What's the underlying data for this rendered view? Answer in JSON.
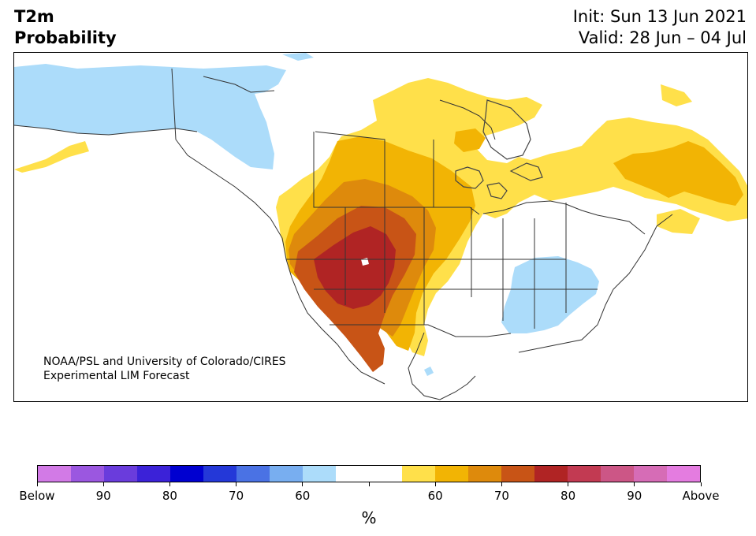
{
  "title_left": [
    "T2m",
    "Probability"
  ],
  "title_right": [
    "Init: Sun 13 Jun 2021",
    "Valid: 28 Jun – 04 Jul"
  ],
  "credit": [
    "NOAA/PSL and University of Colorado/CIRES",
    "Experimental LIM Forecast"
  ],
  "colorbar": {
    "colors": [
      "#d27ae6",
      "#9b57e0",
      "#6a3cdc",
      "#3b22d8",
      "#0000d0",
      "#2438d8",
      "#4a72e4",
      "#78aef0",
      "#acdcfa",
      "#ffffff",
      "#ffffff",
      "#ffe04a",
      "#f2b404",
      "#de8a0c",
      "#c85416",
      "#b02424",
      "#c23a52",
      "#cc5686",
      "#d66cb6",
      "#e47ce0"
    ],
    "tick_labels": [
      "Below",
      "90",
      "80",
      "70",
      "60",
      "",
      "60",
      "70",
      "80",
      "90",
      "Above"
    ],
    "unit": "%"
  },
  "legend_colors": {
    "below_light": "#acdcfa",
    "above_60": "#ffe04a",
    "above_70": "#f2b404",
    "above_75": "#de8a0c",
    "above_80": "#c85416",
    "above_90": "#b02424"
  }
}
